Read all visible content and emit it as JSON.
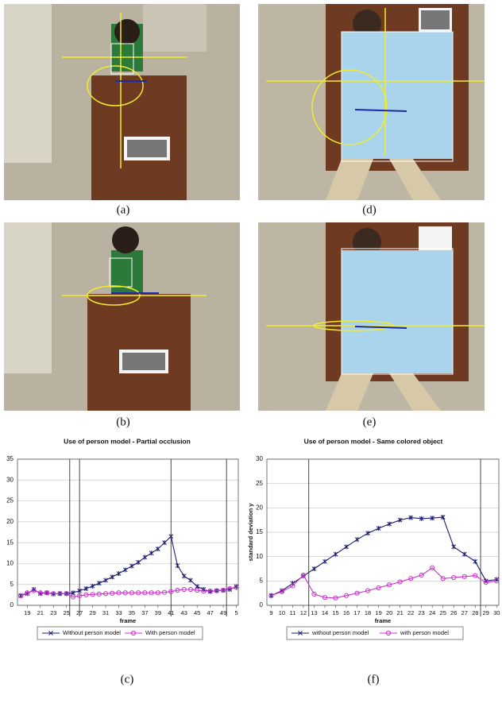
{
  "photo_labels": [
    "(a)",
    "(d)",
    "(b)",
    "(e)"
  ],
  "chart_labels": [
    "(c)",
    "(f)"
  ],
  "chart_data": [
    {
      "type": "line",
      "title": "Use of person model - Partial occlusion",
      "x_label": "frame",
      "x": [
        18,
        19,
        20,
        21,
        22,
        23,
        24,
        25,
        26,
        27,
        28,
        29,
        30,
        31,
        32,
        33,
        34,
        35,
        36,
        37,
        38,
        39,
        40,
        41,
        42,
        43,
        44,
        45,
        46,
        47,
        48,
        49,
        50,
        51
      ],
      "xlim": [
        17.5,
        51.3
      ],
      "xticks": [
        19,
        21,
        23,
        25,
        27,
        29,
        31,
        33,
        35,
        37,
        39,
        41,
        43,
        45,
        47,
        49,
        {
          "value": 51,
          "label": "5"
        }
      ],
      "ylim": [
        0,
        35
      ],
      "yticks": [
        0,
        5,
        10,
        15,
        20,
        25,
        30,
        35
      ],
      "grid": true,
      "vlines": [
        25.5,
        27,
        41,
        49.5
      ],
      "series": [
        {
          "name": "Without person model",
          "color": "#1c1c6e",
          "marker": "x",
          "values": [
            2.3,
            2.8,
            3.8,
            2.8,
            3.0,
            2.7,
            2.8,
            2.8,
            3.0,
            3.5,
            4.0,
            4.6,
            5.3,
            6.0,
            6.8,
            7.6,
            8.5,
            9.4,
            10.3,
            11.5,
            12.5,
            13.5,
            15.0,
            16.5,
            9.5,
            7.0,
            6.0,
            4.5,
            3.8,
            3.3,
            3.5,
            3.6,
            3.8,
            4.5
          ]
        },
        {
          "name": "With person model",
          "color": "#cc33cc",
          "marker": "o",
          "values": [
            2.3,
            3.0,
            3.5,
            3.0,
            3.0,
            2.8,
            2.8,
            2.8,
            2.0,
            2.3,
            2.5,
            2.6,
            2.7,
            2.8,
            2.9,
            3.0,
            3.0,
            3.0,
            3.0,
            3.0,
            3.0,
            3.0,
            3.1,
            3.3,
            3.6,
            3.8,
            3.8,
            3.6,
            3.4,
            3.4,
            3.5,
            3.6,
            4.0,
            4.3
          ]
        }
      ]
    },
    {
      "type": "line",
      "title": "Use of person model - Same colored object",
      "x_label": "frame",
      "y_label": "standard deviation y",
      "x": [
        9,
        10,
        11,
        12,
        13,
        14,
        15,
        16,
        17,
        18,
        19,
        20,
        21,
        22,
        23,
        24,
        25,
        26,
        27,
        28,
        29,
        30
      ],
      "xlim": [
        8.6,
        30.2
      ],
      "xticks": [
        9,
        10,
        11,
        12,
        13,
        14,
        15,
        16,
        17,
        18,
        19,
        20,
        21,
        22,
        23,
        24,
        25,
        26,
        27,
        28,
        29,
        30
      ],
      "ylim": [
        0,
        30
      ],
      "yticks": [
        0,
        5,
        10,
        15,
        20,
        25,
        30
      ],
      "grid": true,
      "vlines": [
        12.5,
        28.5
      ],
      "series": [
        {
          "name": "without person model",
          "color": "#1c1c6e",
          "marker": "x",
          "values": [
            2.0,
            3.0,
            4.5,
            6.0,
            7.5,
            9.0,
            10.5,
            12.0,
            13.5,
            14.8,
            15.8,
            16.7,
            17.5,
            18.0,
            17.8,
            17.9,
            18.1,
            12.0,
            10.5,
            9.0,
            5.0,
            5.3
          ]
        },
        {
          "name": "with person model",
          "color": "#cc33cc",
          "marker": "o",
          "values": [
            2.0,
            2.8,
            4.0,
            6.2,
            2.3,
            1.6,
            1.5,
            2.0,
            2.5,
            3.0,
            3.6,
            4.2,
            4.8,
            5.5,
            6.2,
            7.7,
            5.5,
            5.7,
            5.9,
            6.1,
            4.7,
            5.0
          ]
        }
      ]
    }
  ]
}
